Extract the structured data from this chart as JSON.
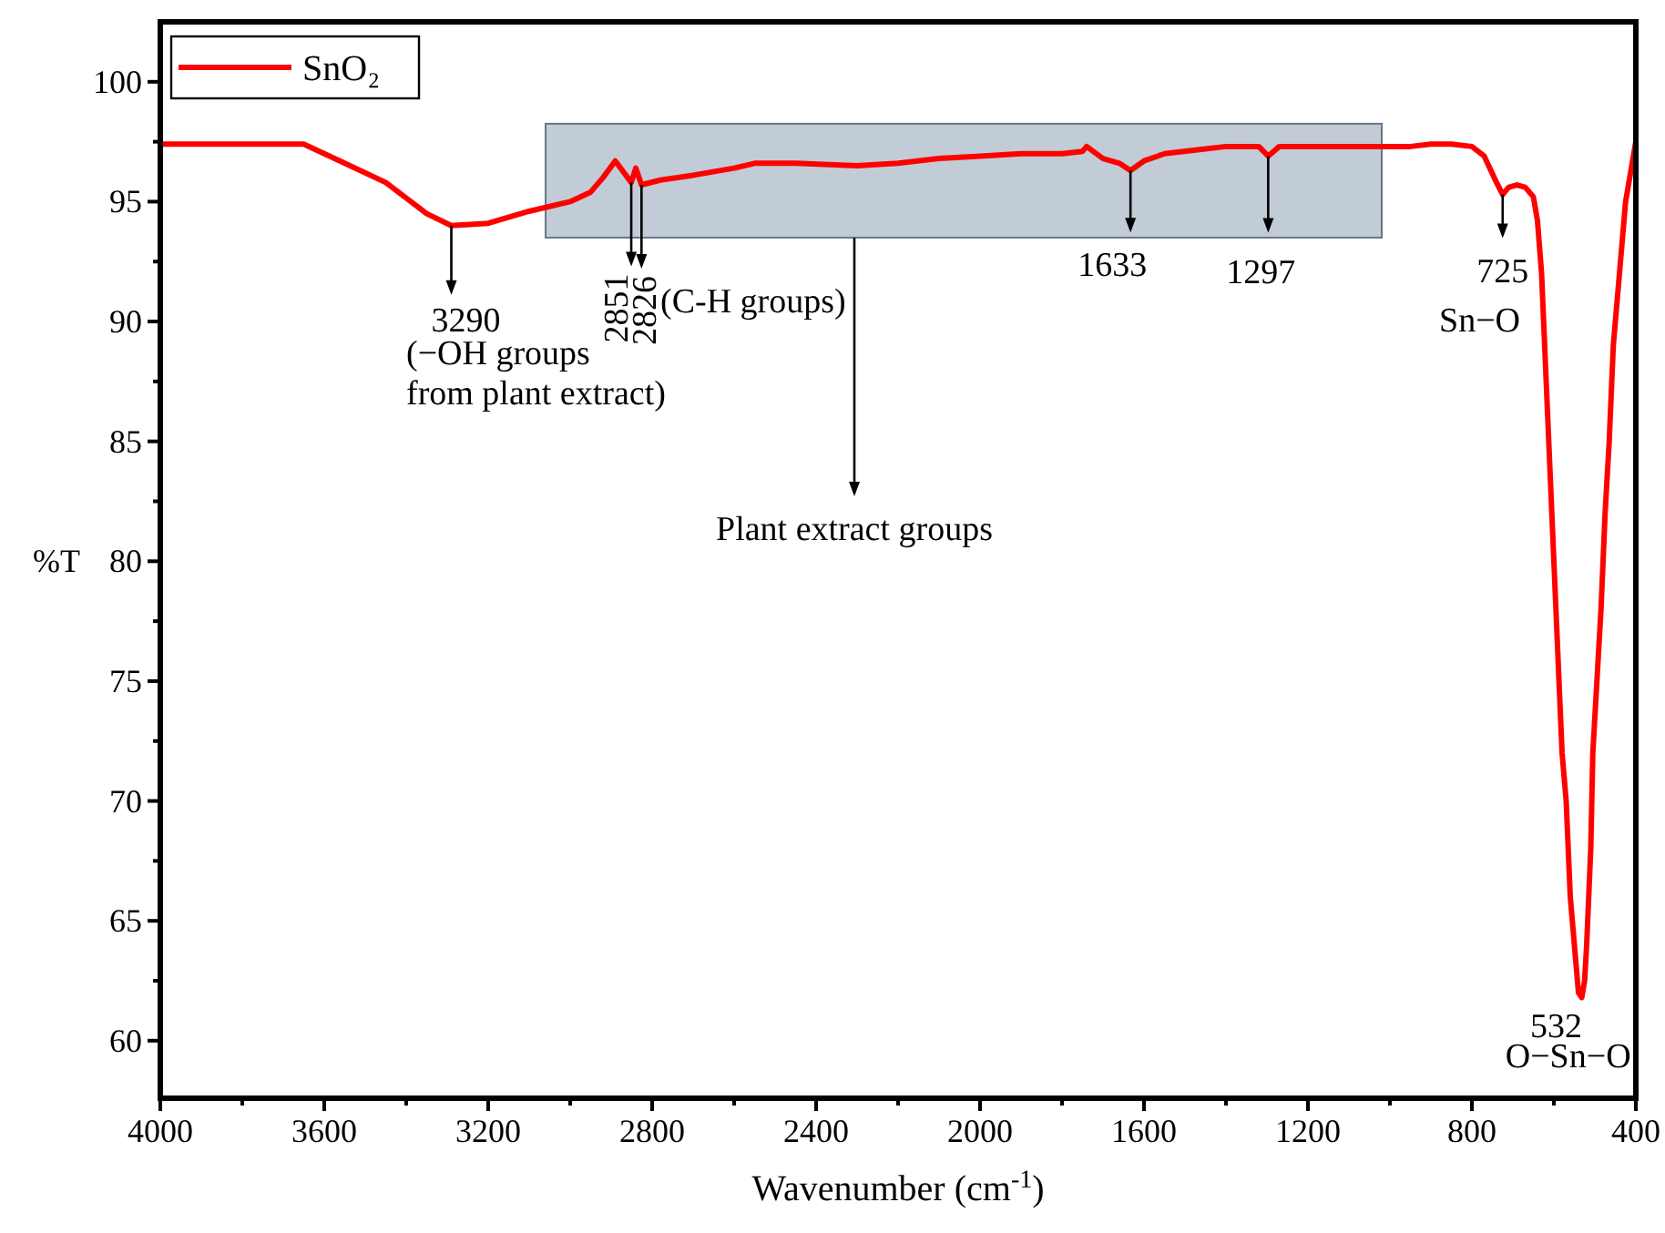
{
  "chart_data": {
    "type": "line",
    "xlabel": "Wavenumber (cm$^{-1}$)",
    "ylabel": "%T",
    "xlim": [
      4000,
      400
    ],
    "ylim": [
      57.6,
      102.5
    ],
    "xticks": [
      4000,
      {
        "value": 3800,
        "label": null
      },
      3600,
      {
        "value": 3400,
        "label": null
      },
      3200,
      {
        "value": 3000,
        "label": null
      },
      2800,
      {
        "value": 2600,
        "label": null
      },
      2400,
      {
        "value": 2200,
        "label": null
      },
      2000,
      {
        "value": 1800,
        "label": null
      },
      1600,
      {
        "value": 1400,
        "label": null
      },
      1200,
      {
        "value": 1000,
        "label": null
      },
      800,
      {
        "value": 600,
        "label": null
      },
      400
    ],
    "yticks": [
      60,
      {
        "value": 62.5,
        "label": null
      },
      65,
      {
        "value": 67.5,
        "label": null
      },
      70,
      {
        "value": 72.5,
        "label": null
      },
      75,
      {
        "value": 77.5,
        "label": null
      },
      80,
      {
        "value": 82.5,
        "label": null
      },
      85,
      {
        "value": 87.5,
        "label": null
      },
      90,
      {
        "value": 92.5,
        "label": null
      },
      95,
      {
        "value": 97.5,
        "label": null
      },
      100
    ],
    "grid": false,
    "legend": "top left",
    "marker": "none",
    "line_style": "solid",
    "series": [
      {
        "name": "SnO₂",
        "color": "#ff0000",
        "x": [
          4000,
          3800,
          3650,
          3550,
          3450,
          3350,
          3290,
          3200,
          3100,
          3000,
          2950,
          2920,
          2890,
          2851,
          2840,
          2826,
          2780,
          2700,
          2600,
          2550,
          2450,
          2300,
          2200,
          2100,
          2000,
          1900,
          1800,
          1750,
          1740,
          1700,
          1660,
          1633,
          1600,
          1550,
          1450,
          1400,
          1320,
          1297,
          1270,
          1200,
          1100,
          1000,
          950,
          900,
          850,
          800,
          770,
          740,
          725,
          710,
          690,
          670,
          650,
          640,
          630,
          620,
          610,
          600,
          590,
          580,
          570,
          560,
          550,
          540,
          532,
          525,
          520,
          510,
          505,
          495,
          485,
          475,
          465,
          455,
          445,
          435,
          425,
          415,
          405,
          400
        ],
        "values": [
          97.4,
          97.4,
          97.4,
          96.6,
          95.8,
          94.5,
          94.0,
          94.1,
          94.6,
          95.0,
          95.4,
          96.0,
          96.7,
          95.8,
          96.4,
          95.7,
          95.9,
          96.1,
          96.4,
          96.6,
          96.6,
          96.5,
          96.6,
          96.8,
          96.9,
          97.0,
          97.0,
          97.1,
          97.3,
          96.8,
          96.6,
          96.3,
          96.7,
          97.0,
          97.2,
          97.3,
          97.3,
          96.9,
          97.3,
          97.3,
          97.3,
          97.3,
          97.3,
          97.4,
          97.4,
          97.3,
          96.9,
          95.8,
          95.3,
          95.6,
          95.7,
          95.6,
          95.2,
          94.2,
          92.0,
          88.0,
          84.0,
          80.0,
          76.0,
          72.0,
          70.0,
          66.0,
          64.0,
          62.0,
          61.8,
          62.5,
          64.0,
          68.0,
          72.0,
          75.0,
          78.0,
          82.0,
          85.0,
          89.0,
          91.0,
          93.0,
          95.0,
          96.0,
          97.0,
          97.5
        ]
      }
    ],
    "bands": [
      {
        "axis": "x",
        "from": 3060,
        "to": 1020,
        "label": "Plant extract groups",
        "color": "#99aabb"
      }
    ],
    "annotations": [
      {
        "text": "3290",
        "x": 3290,
        "y": 94.0
      },
      "(−OH groups\nfrom plant extract)",
      {
        "text": "2851",
        "x": 2851,
        "y": 95.8
      },
      {
        "text": "2826",
        "x": 2826,
        "y": 95.7
      },
      "(C-H groups)",
      {
        "text": "1633",
        "x": 1633,
        "y": 96.3
      },
      {
        "text": "1297",
        "x": 1297,
        "y": 96.9
      },
      {
        "text": "725",
        "x": 725,
        "y": 95.3
      },
      "Sn−O",
      {
        "text": "532",
        "x": 532,
        "y": 61.8
      },
      "O−Sn−O"
    ]
  }
}
